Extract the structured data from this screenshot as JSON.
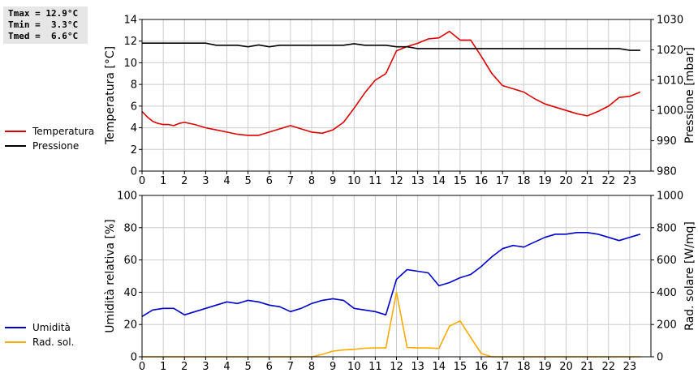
{
  "stats": {
    "tmax": "Tmax = 12.9°C",
    "tmin": "Tmin =  3.3°C",
    "tmed": "Tmed =  6.6°C"
  },
  "chart_data": [
    {
      "type": "line",
      "ylabel": "Temperatura [°C]",
      "y2label": "Pressione [mbar]",
      "xlim": [
        0,
        24
      ],
      "ylim": [
        0,
        14
      ],
      "y2lim": [
        980,
        1030
      ],
      "xticks": [
        0,
        1,
        2,
        3,
        4,
        5,
        6,
        7,
        8,
        9,
        10,
        11,
        12,
        13,
        14,
        15,
        16,
        17,
        18,
        19,
        20,
        21,
        22,
        23
      ],
      "yticks": [
        0,
        2,
        4,
        6,
        8,
        10,
        12,
        14
      ],
      "y2ticks": [
        980,
        990,
        1000,
        1010,
        1020,
        1030
      ],
      "grid": true,
      "legend_position": "left",
      "series": [
        {
          "name": "Temperatura",
          "color": "#dd0000",
          "axis": "left",
          "x": [
            0,
            0.25,
            0.5,
            0.75,
            1,
            1.25,
            1.5,
            1.75,
            2,
            2.5,
            3,
            3.5,
            4,
            4.5,
            5,
            5.5,
            6,
            6.5,
            7,
            7.5,
            8,
            8.5,
            9,
            9.5,
            10,
            10.5,
            11,
            11.5,
            12,
            12.5,
            13,
            13.5,
            14,
            14.5,
            15,
            15.5,
            16,
            16.5,
            17,
            17.5,
            18,
            18.5,
            19,
            19.5,
            20,
            20.5,
            21,
            21.5,
            22,
            22.5,
            23,
            23.5
          ],
          "values": [
            5.5,
            5.0,
            4.6,
            4.4,
            4.3,
            4.3,
            4.2,
            4.4,
            4.5,
            4.3,
            4.0,
            3.8,
            3.6,
            3.4,
            3.3,
            3.3,
            3.6,
            3.9,
            4.2,
            3.9,
            3.6,
            3.5,
            3.8,
            4.5,
            5.8,
            7.2,
            8.4,
            9.0,
            11.1,
            11.5,
            11.8,
            12.2,
            12.3,
            12.9,
            12.1,
            12.1,
            10.6,
            9.0,
            7.9,
            7.6,
            7.3,
            6.7,
            6.2,
            5.9,
            5.6,
            5.3,
            5.1,
            5.5,
            6.0,
            6.8,
            6.9,
            7.3
          ]
        },
        {
          "name": "Pressione",
          "color": "#000000",
          "axis": "right",
          "x": [
            0,
            3,
            3.5,
            4,
            4.5,
            5,
            5.5,
            6,
            6.5,
            7,
            7.5,
            8,
            8.5,
            9,
            9.5,
            10,
            10.5,
            11,
            11.5,
            12,
            12.5,
            13,
            14,
            15,
            16,
            17,
            18,
            19,
            20,
            21,
            22,
            22.5,
            23,
            23.5
          ],
          "values": [
            1022.2,
            1022.2,
            1021.5,
            1021.5,
            1021.5,
            1021.0,
            1021.6,
            1021.0,
            1021.5,
            1021.5,
            1021.5,
            1021.5,
            1021.5,
            1021.5,
            1021.5,
            1022.0,
            1021.5,
            1021.5,
            1021.5,
            1021.0,
            1021.0,
            1020.4,
            1020.4,
            1020.4,
            1020.4,
            1020.4,
            1020.4,
            1020.4,
            1020.4,
            1020.4,
            1020.4,
            1020.4,
            1019.8,
            1019.8
          ]
        }
      ]
    },
    {
      "type": "line",
      "ylabel": "Umidità relativa [%]",
      "y2label": "Rad. solare [W/mq]",
      "xlim": [
        0,
        24
      ],
      "ylim": [
        0,
        100
      ],
      "y2lim": [
        0,
        1000
      ],
      "xticks": [
        0,
        1,
        2,
        3,
        4,
        5,
        6,
        7,
        8,
        9,
        10,
        11,
        12,
        13,
        14,
        15,
        16,
        17,
        18,
        19,
        20,
        21,
        22,
        23
      ],
      "yticks": [
        0,
        20,
        40,
        60,
        80,
        100
      ],
      "y2ticks": [
        0,
        200,
        400,
        600,
        800,
        1000
      ],
      "grid": true,
      "legend_position": "left",
      "series": [
        {
          "name": "Umidità",
          "color": "#0000cc",
          "axis": "left",
          "x": [
            0,
            0.5,
            1,
            1.5,
            2,
            2.5,
            3,
            3.5,
            4,
            4.5,
            5,
            5.5,
            6,
            6.5,
            7,
            7.5,
            8,
            8.5,
            9,
            9.5,
            10,
            10.5,
            11,
            11.5,
            12,
            12.5,
            13,
            13.5,
            14,
            14.5,
            15,
            15.5,
            16,
            16.5,
            17,
            17.5,
            18,
            18.5,
            19,
            19.5,
            20,
            20.5,
            21,
            21.5,
            22,
            22.5,
            23,
            23.5
          ],
          "values": [
            25,
            29,
            30,
            30,
            26,
            28,
            30,
            32,
            34,
            33,
            35,
            34,
            32,
            31,
            28,
            30,
            33,
            35,
            36,
            35,
            30,
            29,
            28,
            26,
            48,
            54,
            53,
            52,
            44,
            46,
            49,
            51,
            56,
            62,
            67,
            69,
            68,
            71,
            74,
            76,
            76,
            77,
            77,
            76,
            74,
            72,
            74,
            76
          ]
        },
        {
          "name": "Rad. sol.",
          "color": "#ffaa00",
          "axis": "right",
          "x": [
            0,
            1,
            2,
            3,
            4,
            5,
            6,
            7,
            8,
            8.5,
            9,
            9.5,
            10,
            10.5,
            11,
            11.5,
            12,
            12.5,
            13,
            13.5,
            14,
            14.5,
            15,
            15.5,
            16,
            16.5,
            17,
            18,
            19,
            20,
            21,
            22,
            23,
            23.5
          ],
          "values": [
            0,
            0,
            0,
            0,
            0,
            0,
            0,
            0,
            0,
            15,
            35,
            42,
            46,
            53,
            55,
            55,
            400,
            58,
            55,
            55,
            52,
            190,
            222,
            120,
            20,
            0,
            0,
            0,
            0,
            0,
            0,
            0,
            0,
            0
          ]
        }
      ]
    }
  ]
}
